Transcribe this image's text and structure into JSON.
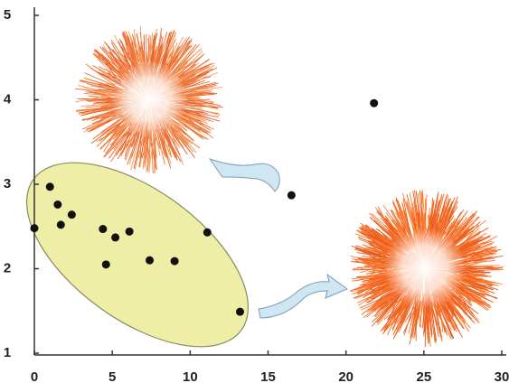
{
  "chart_data": {
    "type": "scatter",
    "x": [
      0,
      1.0,
      1.5,
      1.7,
      2.4,
      4.4,
      4.6,
      5.2,
      6.1,
      7.4,
      9.0,
      11.1,
      13.2,
      16.5,
      21.8
    ],
    "values": [
      2.48,
      2.97,
      2.76,
      2.52,
      2.64,
      2.47,
      2.05,
      2.37,
      2.44,
      2.1,
      2.09,
      2.43,
      1.49,
      2.87,
      3.96
    ],
    "color": "#111111",
    "xlim": [
      0,
      30
    ],
    "xticks": [
      0,
      5,
      10,
      15,
      20,
      25,
      30
    ],
    "ylim": [
      1,
      5
    ],
    "yticks": [
      1,
      2,
      3,
      4,
      5
    ]
  }
}
